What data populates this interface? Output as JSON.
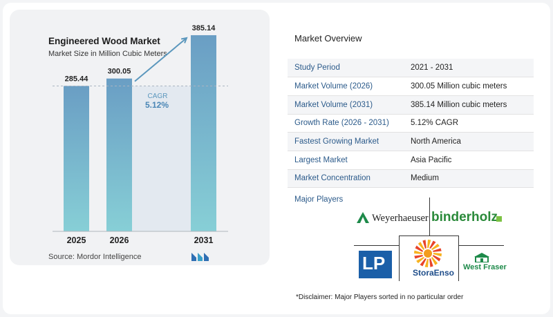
{
  "chart_data": {
    "type": "bar",
    "title": "Engineered Wood Market",
    "subtitle": "Market Size in Million Cubic Meters",
    "categories": [
      "2025",
      "2026",
      "2031"
    ],
    "values": [
      285.44,
      300.05,
      385.14
    ],
    "value_labels": [
      "285.44",
      "300.05",
      "385.14"
    ],
    "cagr_label": "CAGR",
    "cagr_value": "5.12%",
    "bar_color_top": "#6a9ec4",
    "bar_color_bottom": "#87cfd6",
    "ylim": [
      0,
      400
    ],
    "reference_line": 285.44
  },
  "source_label": "Source:",
  "source_name": "Mordor Intelligence",
  "overview": {
    "title": "Market Overview",
    "rows": [
      {
        "key": "Study Period",
        "value": "2021 - 2031"
      },
      {
        "key": "Market Volume (2026)",
        "value": "300.05 Million cubic meters"
      },
      {
        "key": "Market Volume (2031)",
        "value": "385.14 Million cubic meters"
      },
      {
        "key": "Growth Rate (2026 - 2031)",
        "value": "5.12% CAGR"
      },
      {
        "key": "Fastest Growing Market",
        "value": "North America"
      },
      {
        "key": "Largest Market",
        "value": "Asia Pacific"
      },
      {
        "key": "Market Concentration",
        "value": "Medium"
      }
    ]
  },
  "players": {
    "title": "Major Players",
    "logos": [
      "Weyerhaeuser",
      "binderholz",
      "LP",
      "StoraEnso",
      "West Fraser"
    ]
  },
  "disclaimer": "*Disclaimer: Major Players sorted in no particular order",
  "colors": {
    "accent": "#2b5a8a",
    "bar": "#6a9ec4",
    "arrow": "#5b97bd",
    "card": "#f1f2f4"
  }
}
